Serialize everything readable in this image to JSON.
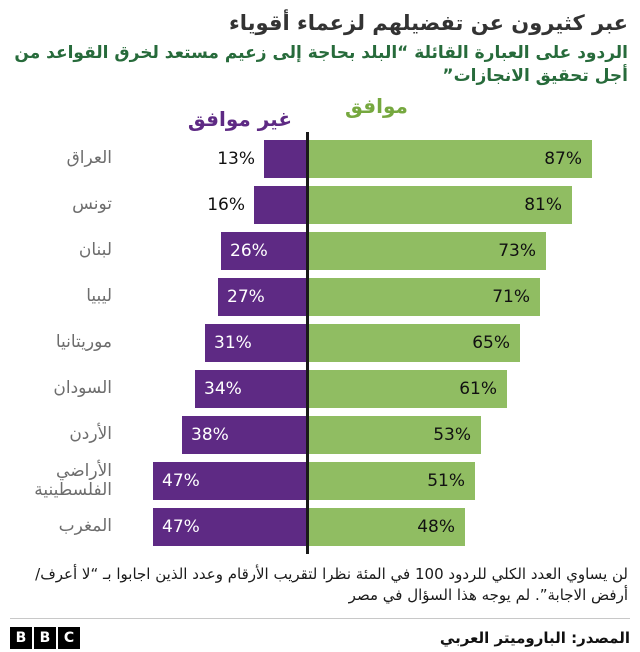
{
  "title": "عبر كثيرون عن تفضيلهم لزعماء أقوياء",
  "subtitle": "الردود على العبارة القائلة “البلد بحاجة إلى زعيم مستعد لخرق القواعد من أجل تحقيق الانجازات”",
  "legend": {
    "agree": "موافق",
    "disagree": "غير موافق"
  },
  "chart_data": {
    "type": "bar",
    "orientation": "diverging-horizontal",
    "categories": [
      "العراق",
      "تونس",
      "لبنان",
      "ليبيا",
      "موريتانيا",
      "السودان",
      "الأردن",
      "الأراضي الفلسطينية",
      "المغرب"
    ],
    "series": [
      {
        "name": "غير موافق",
        "color": "#5e2a84",
        "values": [
          13,
          16,
          26,
          27,
          31,
          34,
          38,
          47,
          47
        ]
      },
      {
        "name": "موافق",
        "color": "#90bd62",
        "values": [
          87,
          81,
          73,
          71,
          65,
          61,
          53,
          51,
          48
        ]
      }
    ],
    "value_suffix": "%",
    "xlim": [
      0,
      90
    ],
    "grid": false,
    "legend_position": "top-center"
  },
  "footnote": "لن يساوي العدد الكلي للردود 100 في المئة نظرا لتقريب الأرقام وعدد الذين اجابوا بـ “لا أعرف/أرفض الاجابة”. لم يوجه هذا السؤال في مصر",
  "source": "المصدر: الباروميتر العربي",
  "logo": {
    "letters": [
      "B",
      "B",
      "C"
    ]
  },
  "colors": {
    "purple": "#5e2a84",
    "green": "#90bd62",
    "subtitle_green": "#276b3b",
    "legend_green": "#76a83f",
    "label_gray": "#6d6d6d",
    "axis": "#1a1a1a"
  }
}
